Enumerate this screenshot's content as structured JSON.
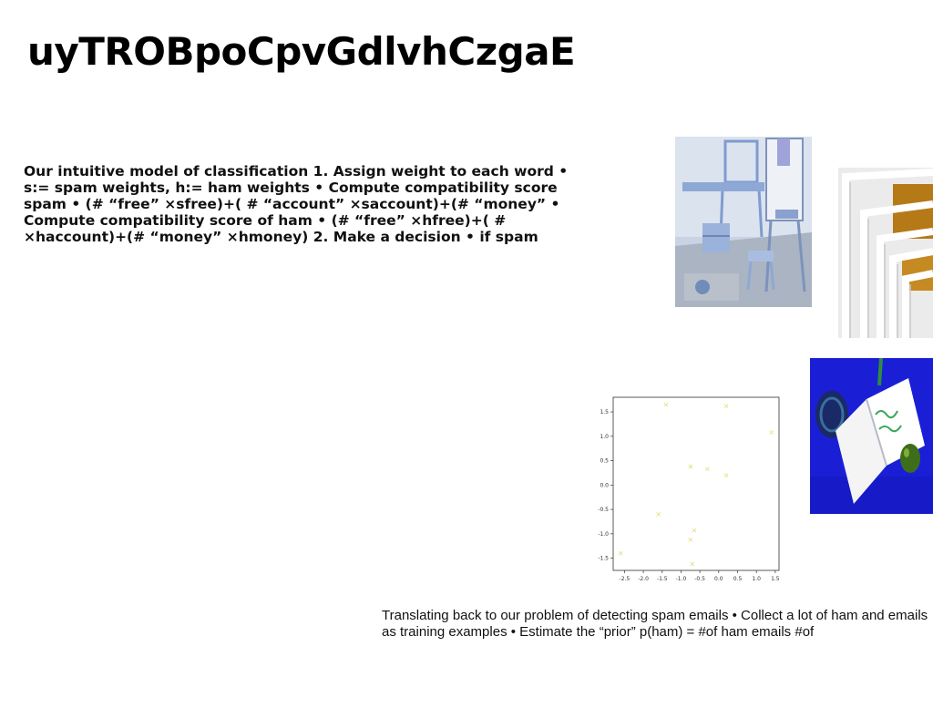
{
  "slide": {
    "title": "uyTROBpoCpvGdlvhCzgaE",
    "body_text": "Our intuitive model of classification 1. Assign weight to each word • s:= spam weights, h:= ham weights • Compute compatibility score spam • (# “free” ×sfree)+( # “account” ×saccount)+(# “money” • Compute compatibility score of ham • (# “free” ×hfree)+( # ×haccount)+(# “money” ×hmoney) 2. Make a decision • if spam",
    "caption_text": "Translating back to our problem of detecting spam emails • Collect a lot of ham and emails as training examples • Estimate the “prior” p(ham) = #of ham emails #of"
  },
  "images": [
    {
      "name": "room-photo",
      "colors": {
        "primary": "#8fa6cc",
        "floor": "#9aa3ad"
      }
    },
    {
      "name": "frames-photo",
      "colors": {
        "primary": "#f2f2f2",
        "accent": "#b57a17"
      }
    },
    {
      "name": "notebook-photo",
      "colors": {
        "primary": "#1a1fd6",
        "accent": "#f4f4f4"
      }
    }
  ],
  "chart_data": {
    "type": "scatter",
    "marker": "x",
    "color": "#e8df8a",
    "x": [
      -2.6,
      -1.6,
      -1.4,
      -0.75,
      -0.75,
      -0.65,
      -0.7,
      -0.3,
      0.2,
      0.2,
      1.4
    ],
    "y": [
      -1.4,
      -0.6,
      1.65,
      0.38,
      -1.12,
      -0.93,
      -1.62,
      0.33,
      1.62,
      0.2,
      1.08
    ],
    "xlim": [
      -2.8,
      1.6
    ],
    "ylim": [
      -1.75,
      1.8
    ],
    "xticks": [
      "-2.5",
      "-2.0",
      "-1.5",
      "-1.0",
      "-0.5",
      "0.0",
      "0.5",
      "1.0",
      "1.5"
    ],
    "yticks": [
      "-1.5",
      "-1.0",
      "-0.5",
      "0.0",
      "0.5",
      "1.0",
      "1.5"
    ],
    "title": "",
    "xlabel": "",
    "ylabel": "",
    "grid": false
  }
}
